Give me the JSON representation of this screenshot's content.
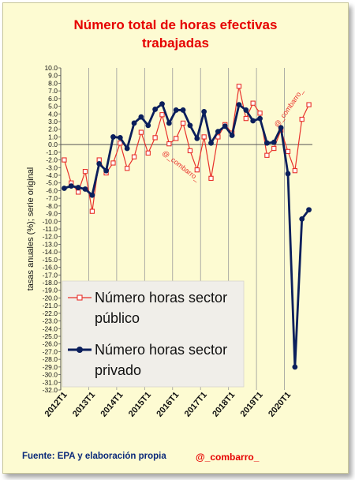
{
  "chart_data": {
    "type": "line",
    "title_lines": [
      "Número total de horas efectivas",
      "trabajadas"
    ],
    "ylabel": "tasas anuales (%); serie original",
    "ylim": [
      -32,
      10
    ],
    "ytick_step": 1,
    "grid": "vertical-yearly",
    "x_labels": [
      "2012T1",
      "2013T1",
      "2014T1",
      "2015T1",
      "2016T1",
      "2017T1",
      "2018T1",
      "2019T1",
      "2020T1"
    ],
    "series": [
      {
        "name": "Número horas sector público",
        "color": "#e8302a",
        "marker": "square",
        "legend_lines": [
          "Número horas sector",
          "público"
        ],
        "values": [
          -2.0,
          -5.0,
          -6.2,
          -3.5,
          -8.7,
          -2.0,
          -3.7,
          -2.4,
          0.2,
          -3.1,
          -1.6,
          1.6,
          -1.1,
          0.9,
          3.9,
          0.1,
          0.8,
          2.8,
          -0.8,
          -3.3,
          1.0,
          -4.4,
          1.0,
          2.6,
          1.5,
          7.6,
          3.4,
          5.4,
          4.1,
          -1.4,
          -0.5,
          1.9,
          -0.9,
          -3.4,
          3.3,
          5.2
        ]
      },
      {
        "name": "Número horas sector privado",
        "color": "#0b1f5c",
        "marker": "circle",
        "legend_lines": [
          "Número horas sector",
          "privado"
        ],
        "values": [
          -5.7,
          -5.4,
          -5.6,
          -5.8,
          -6.6,
          -2.5,
          -3.4,
          1.0,
          0.9,
          -0.5,
          2.8,
          3.6,
          2.5,
          4.6,
          5.3,
          2.8,
          4.5,
          4.5,
          2.5,
          0.8,
          4.3,
          0.2,
          1.7,
          2.4,
          1.2,
          5.2,
          4.5,
          3.1,
          3.4,
          0.2,
          0.3,
          2.2,
          -3.8,
          -29.0,
          -9.7,
          -8.5
        ]
      }
    ],
    "annotations": [
      "@_combarro_",
      "@_combarro_"
    ]
  },
  "footer": {
    "source": "Fuente: EPA  y elaboración propia",
    "handle": "@_combarro_"
  }
}
